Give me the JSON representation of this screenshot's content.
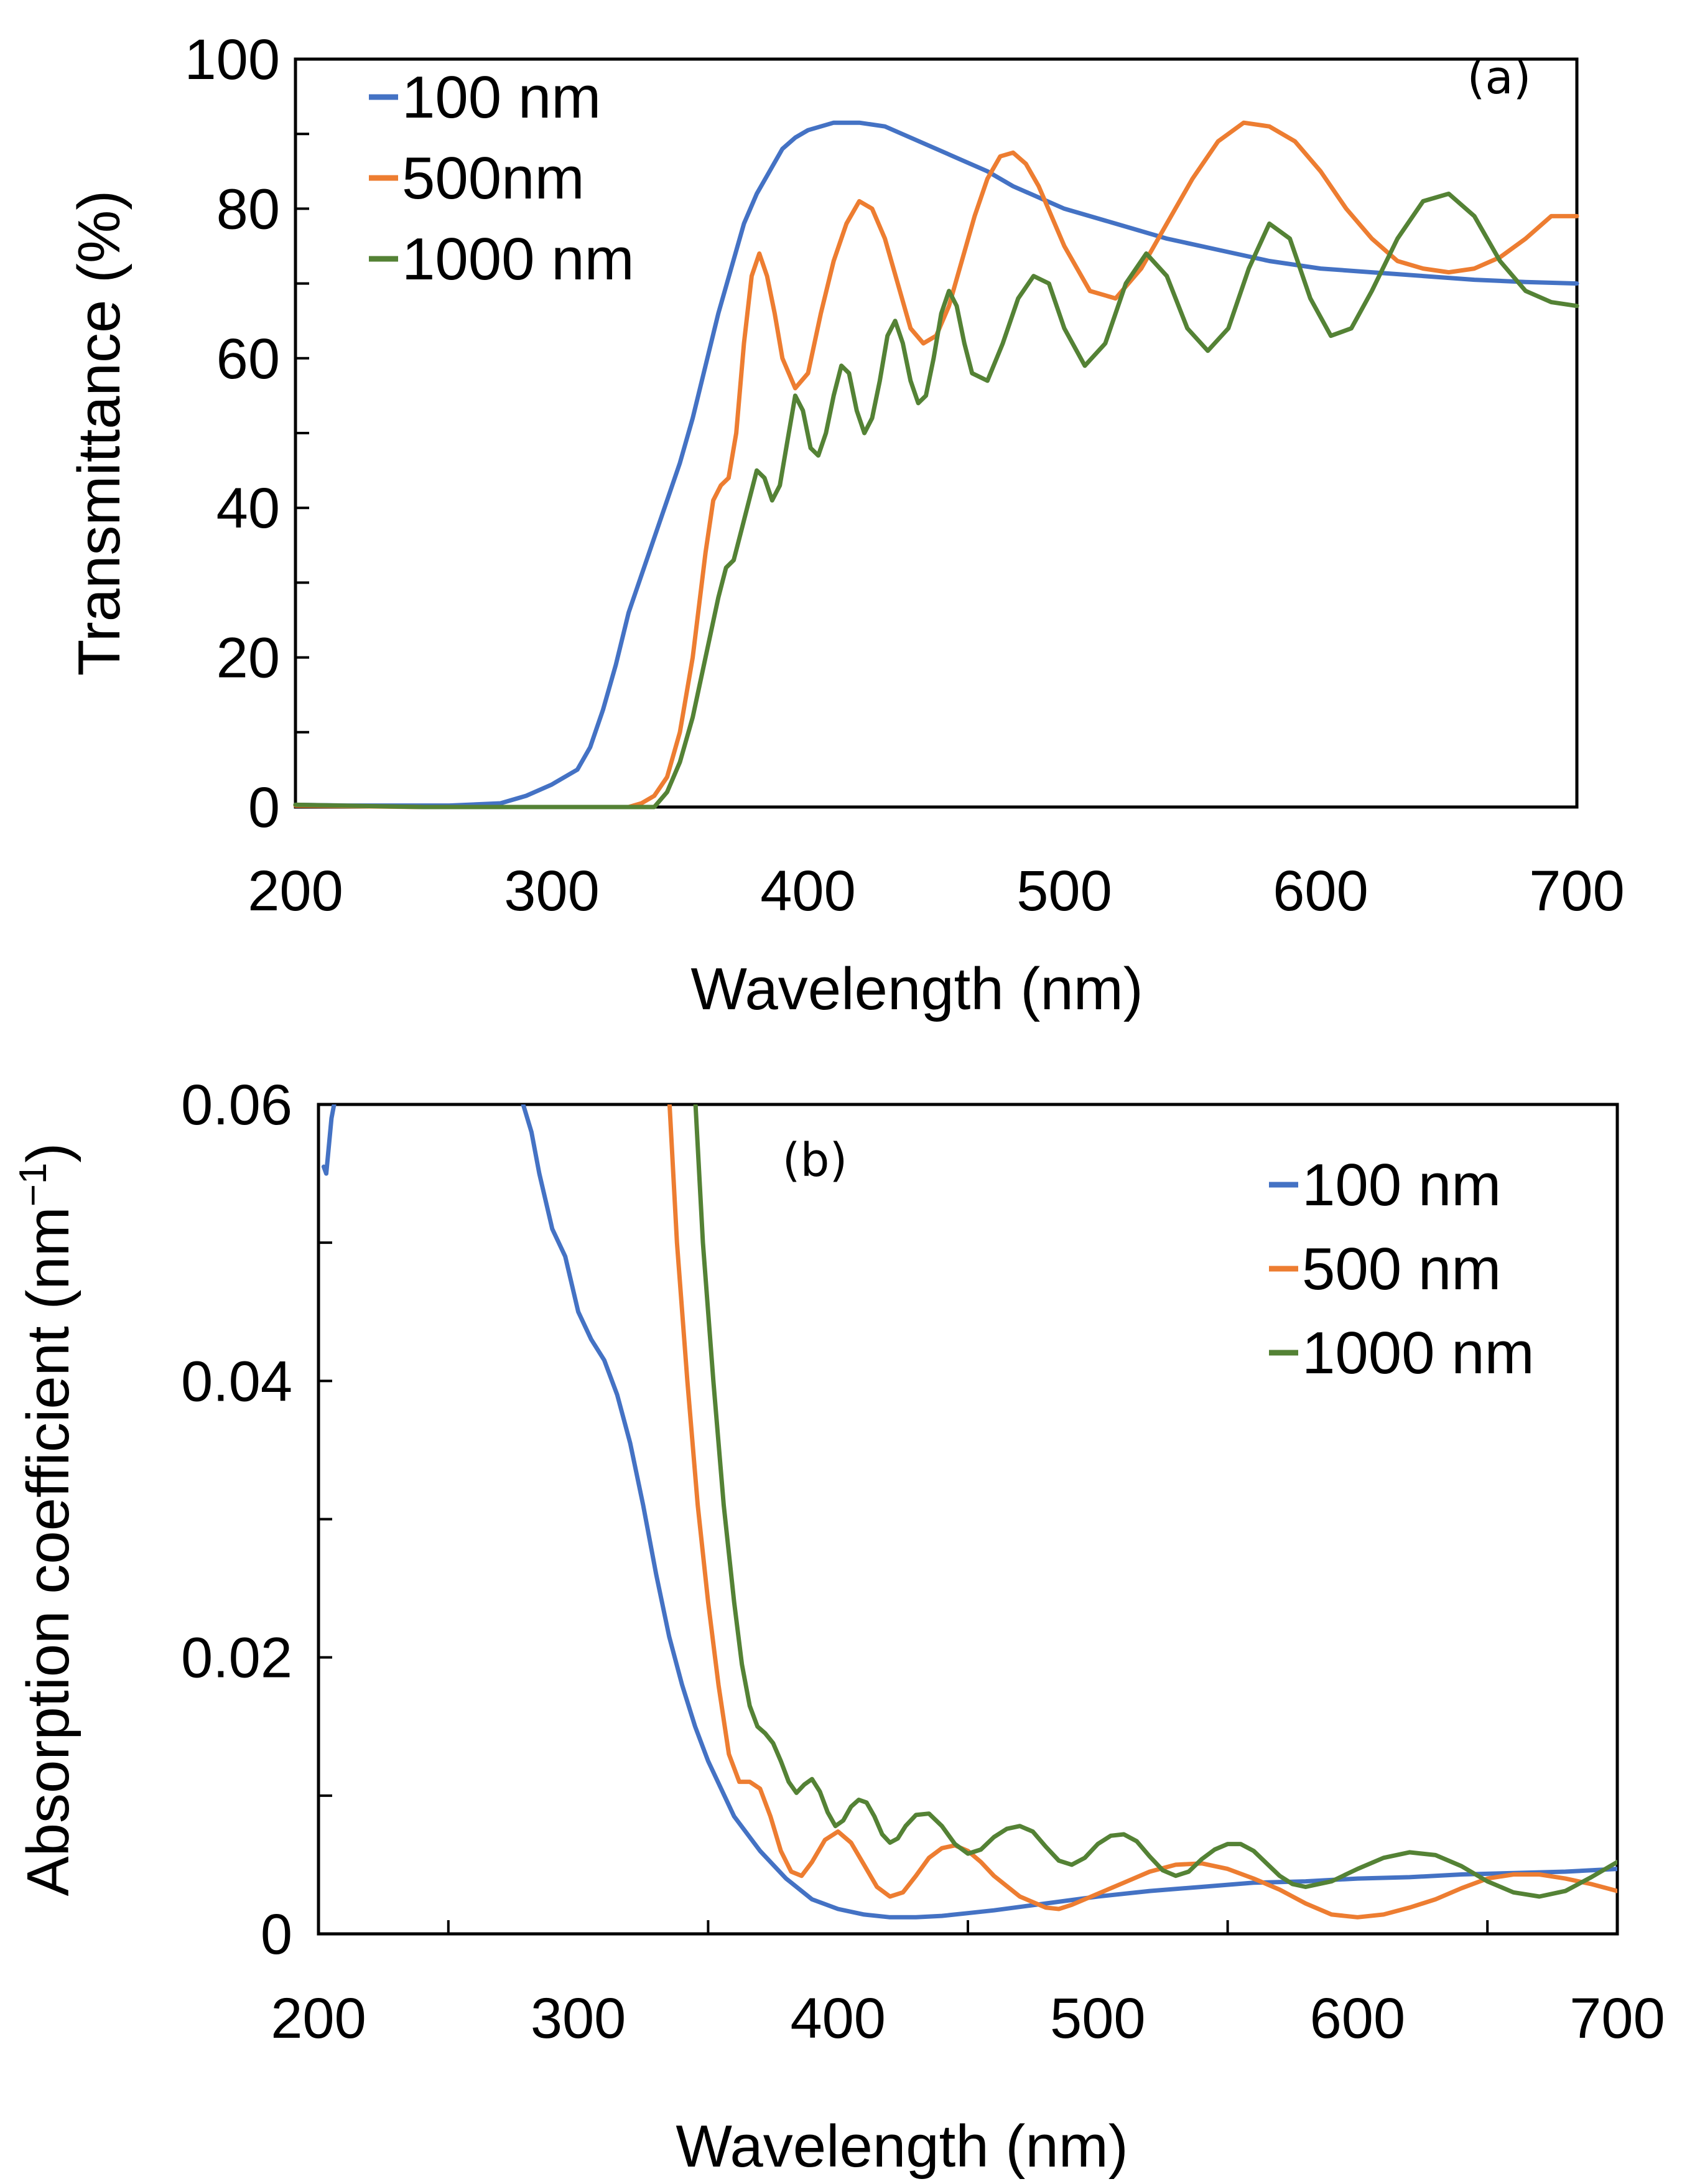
{
  "colors": {
    "blue": "#4472C4",
    "orange": "#ED7D31",
    "green": "#548235",
    "axis": "#000000"
  },
  "chart_data": [
    {
      "type": "line",
      "panel": "(a)",
      "xlabel": "Wavelength (nm)",
      "ylabel": "Transmittance (%)",
      "xlim": [
        200,
        700
      ],
      "ylim": [
        0,
        100
      ],
      "xticks": [
        200,
        300,
        400,
        500,
        600,
        700
      ],
      "xtick_labels": [
        "200",
        "300",
        "400",
        "500",
        "600",
        "700"
      ],
      "yticks": [
        0,
        20,
        40,
        60,
        80,
        100
      ],
      "ytick_labels": [
        "0",
        "20",
        "40",
        "60",
        "80",
        "100"
      ],
      "legend_position": "top-left",
      "series": [
        {
          "name": "100 nm",
          "color": "blue",
          "x": [
            200,
            220,
            240,
            260,
            280,
            290,
            300,
            310,
            315,
            320,
            325,
            330,
            335,
            340,
            345,
            350,
            355,
            360,
            365,
            370,
            375,
            380,
            385,
            390,
            395,
            400,
            410,
            420,
            430,
            440,
            450,
            460,
            470,
            480,
            500,
            520,
            540,
            560,
            580,
            600,
            620,
            640,
            660,
            680,
            700
          ],
          "y": [
            0.3,
            0.2,
            0.2,
            0.2,
            0.5,
            1.5,
            3,
            5,
            8,
            13,
            19,
            26,
            31,
            36,
            41,
            46,
            52,
            59,
            66,
            72,
            78,
            82,
            85,
            88,
            89.5,
            90.5,
            91.5,
            91.5,
            91,
            89.5,
            88,
            86.5,
            85,
            83,
            80,
            78,
            76,
            74.5,
            73,
            72,
            71.5,
            71,
            70.5,
            70.2,
            70
          ]
        },
        {
          "name": "500nm",
          "color": "orange",
          "x": [
            200,
            250,
            300,
            330,
            335,
            340,
            345,
            350,
            355,
            360,
            363,
            366,
            369,
            372,
            375,
            378,
            381,
            384,
            387,
            390,
            395,
            400,
            405,
            410,
            415,
            420,
            425,
            430,
            435,
            440,
            445,
            450,
            455,
            460,
            465,
            470,
            475,
            480,
            485,
            490,
            495,
            500,
            510,
            520,
            530,
            540,
            550,
            560,
            570,
            580,
            590,
            600,
            610,
            620,
            630,
            640,
            650,
            660,
            670,
            680,
            690,
            700
          ],
          "y": [
            0.2,
            0,
            0,
            0,
            0.5,
            1.5,
            4,
            10,
            20,
            34,
            41,
            43,
            44,
            50,
            62,
            71,
            74,
            71,
            66,
            60,
            56,
            58,
            66,
            73,
            78,
            81,
            80,
            76,
            70,
            64,
            62,
            63,
            67,
            73,
            79,
            84,
            87,
            87.5,
            86,
            83,
            79,
            75,
            69,
            68,
            72,
            78,
            84,
            89,
            91.5,
            91,
            89,
            85,
            80,
            76,
            73,
            72,
            71.5,
            72,
            73.5,
            76,
            79,
            79
          ]
        },
        {
          "name": "1000 nm",
          "color": "green",
          "x": [
            200,
            250,
            300,
            340,
            345,
            350,
            355,
            360,
            365,
            368,
            371,
            374,
            377,
            380,
            383,
            386,
            389,
            392,
            395,
            398,
            401,
            404,
            407,
            410,
            413,
            416,
            419,
            422,
            425,
            428,
            431,
            434,
            437,
            440,
            443,
            446,
            449,
            452,
            455,
            458,
            461,
            464,
            470,
            476,
            482,
            488,
            494,
            500,
            508,
            516,
            524,
            532,
            540,
            548,
            556,
            564,
            572,
            580,
            588,
            596,
            604,
            612,
            620,
            630,
            640,
            650,
            660,
            670,
            680,
            690,
            700
          ],
          "y": [
            0.3,
            0,
            0,
            0,
            2,
            6,
            12,
            20,
            28,
            32,
            33,
            37,
            41,
            45,
            44,
            41,
            43,
            49,
            55,
            53,
            48,
            47,
            50,
            55,
            59,
            58,
            53,
            50,
            52,
            57,
            63,
            65,
            62,
            57,
            54,
            55,
            60,
            66,
            69,
            67,
            62,
            58,
            57,
            62,
            68,
            71,
            70,
            64,
            59,
            62,
            70,
            74,
            71,
            64,
            61,
            64,
            72,
            78,
            76,
            68,
            63,
            64,
            69,
            76,
            81,
            82,
            79,
            73,
            69,
            67.5,
            67
          ]
        }
      ]
    },
    {
      "type": "line",
      "panel": "(b)",
      "xlabel": "Wavelength (nm)",
      "ylabel": "Absorption coefficient (nm",
      "ylabel_sup": "−1",
      "ylabel_end": ")",
      "xlim": [
        200,
        700
      ],
      "ylim": [
        0,
        0.06
      ],
      "xticks": [
        200,
        300,
        400,
        500,
        600,
        700
      ],
      "xtick_labels": [
        "200",
        "300",
        "400",
        "500",
        "600",
        "700"
      ],
      "yticks": [
        0,
        0.02,
        0.04,
        0.06
      ],
      "ytick_labels": [
        "0",
        "0.02",
        "0.04",
        "0.06"
      ],
      "legend_position": "top-right",
      "series": [
        {
          "name": "100 nm",
          "color": "blue",
          "x": [
            202,
            203,
            204,
            205,
            206,
            207,
            278,
            282,
            285,
            290,
            295,
            300,
            305,
            310,
            315,
            320,
            325,
            330,
            335,
            340,
            345,
            350,
            355,
            360,
            370,
            380,
            390,
            400,
            410,
            420,
            430,
            440,
            450,
            460,
            480,
            500,
            520,
            540,
            560,
            580,
            600,
            620,
            640,
            660,
            680,
            700
          ],
          "y": [
            0.0555,
            0.055,
            0.057,
            0.059,
            0.06,
            0.0605,
            0.0605,
            0.058,
            0.055,
            0.051,
            0.049,
            0.045,
            0.043,
            0.0415,
            0.039,
            0.0355,
            0.031,
            0.026,
            0.0215,
            0.018,
            0.015,
            0.0125,
            0.0105,
            0.0085,
            0.006,
            0.004,
            0.0025,
            0.0018,
            0.0014,
            0.0012,
            0.0012,
            0.0013,
            0.0015,
            0.0017,
            0.0022,
            0.0027,
            0.0031,
            0.0034,
            0.0037,
            0.0038,
            0.004,
            0.0041,
            0.0043,
            0.0044,
            0.0045,
            0.0047
          ]
        },
        {
          "name": "500 nm",
          "color": "orange",
          "x": [
            335,
            338,
            342,
            346,
            350,
            354,
            358,
            362,
            366,
            370,
            374,
            378,
            382,
            386,
            390,
            395,
            400,
            405,
            410,
            415,
            420,
            425,
            430,
            435,
            440,
            445,
            450,
            455,
            460,
            470,
            480,
            485,
            490,
            500,
            510,
            520,
            530,
            540,
            550,
            560,
            570,
            580,
            590,
            600,
            610,
            620,
            630,
            640,
            650,
            660,
            670,
            680,
            690,
            700
          ],
          "y": [
            0.0605,
            0.05,
            0.04,
            0.031,
            0.024,
            0.018,
            0.013,
            0.011,
            0.011,
            0.0105,
            0.0085,
            0.006,
            0.0045,
            0.0042,
            0.0052,
            0.0068,
            0.0074,
            0.0066,
            0.005,
            0.0034,
            0.0027,
            0.003,
            0.0042,
            0.0055,
            0.0062,
            0.0064,
            0.006,
            0.0052,
            0.0042,
            0.0027,
            0.0019,
            0.0018,
            0.0021,
            0.0029,
            0.0037,
            0.0045,
            0.005,
            0.0051,
            0.0047,
            0.004,
            0.0032,
            0.0022,
            0.0014,
            0.0012,
            0.0014,
            0.0019,
            0.0025,
            0.0033,
            0.004,
            0.0043,
            0.0043,
            0.004,
            0.0036,
            0.0031
          ]
        },
        {
          "name": "1000 nm",
          "color": "green",
          "x": [
            345,
            348,
            352,
            356,
            360,
            363,
            366,
            369,
            372,
            375,
            378,
            381,
            384,
            387,
            390,
            393,
            396,
            399,
            402,
            405,
            408,
            411,
            414,
            417,
            420,
            423,
            426,
            430,
            435,
            440,
            445,
            450,
            455,
            460,
            465,
            470,
            475,
            480,
            485,
            490,
            495,
            500,
            505,
            510,
            515,
            520,
            525,
            530,
            535,
            540,
            545,
            550,
            555,
            560,
            565,
            570,
            575,
            580,
            590,
            600,
            610,
            620,
            630,
            640,
            650,
            660,
            670,
            680,
            690,
            700
          ],
          "y": [
            0.0605,
            0.05,
            0.04,
            0.031,
            0.024,
            0.0195,
            0.0165,
            0.015,
            0.0145,
            0.0138,
            0.0125,
            0.011,
            0.0102,
            0.0108,
            0.0112,
            0.0103,
            0.0088,
            0.0078,
            0.0082,
            0.0092,
            0.0097,
            0.0095,
            0.0085,
            0.0072,
            0.0066,
            0.0069,
            0.0078,
            0.0086,
            0.0087,
            0.0078,
            0.0065,
            0.0058,
            0.0061,
            0.007,
            0.0076,
            0.0078,
            0.0074,
            0.0063,
            0.0053,
            0.005,
            0.0055,
            0.0065,
            0.0071,
            0.0072,
            0.0067,
            0.0056,
            0.0046,
            0.0042,
            0.0045,
            0.0054,
            0.0061,
            0.0065,
            0.0065,
            0.006,
            0.0051,
            0.0042,
            0.0036,
            0.0034,
            0.0038,
            0.0047,
            0.0055,
            0.0059,
            0.0057,
            0.0049,
            0.0038,
            0.003,
            0.0027,
            0.0031,
            0.0041,
            0.0052
          ]
        }
      ]
    }
  ]
}
